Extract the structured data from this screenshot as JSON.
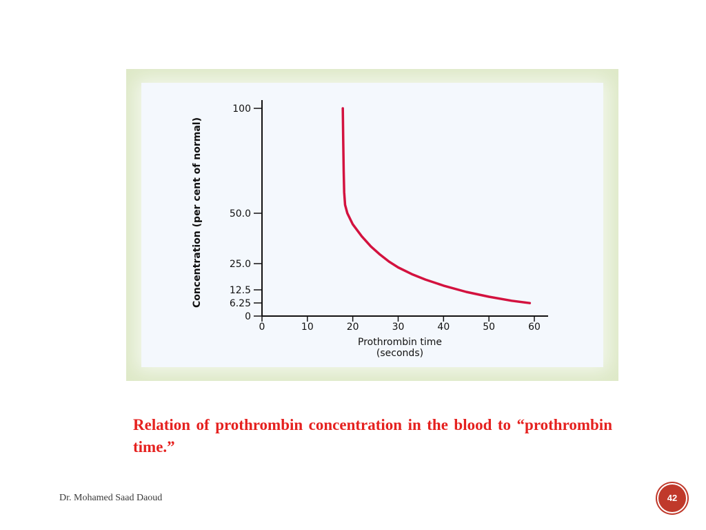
{
  "colors": {
    "curve": "#d3123f",
    "caption": "#e5211f",
    "badge": "#c0392b"
  },
  "chart_data": {
    "type": "line",
    "ylabel": "Concentration (per cent of normal)",
    "xlabel_line1": "Prothrombin time",
    "xlabel_line2": "(seconds)",
    "x_ticks": [
      0,
      10,
      20,
      30,
      40,
      50,
      60
    ],
    "y_ticks": [
      "100",
      "50.0",
      "25.0",
      "12.5",
      "6.25",
      "0"
    ],
    "xlim": [
      0,
      63
    ],
    "grid": false,
    "series": [
      {
        "x": [
          17.8,
          17.9,
          18.0,
          18.1,
          18.3,
          18.8,
          20,
          22,
          24,
          26,
          28,
          30,
          33,
          36,
          40,
          45,
          50,
          55,
          59
        ],
        "y": [
          100,
          85,
          70,
          60,
          54,
          50,
          44.5,
          38.5,
          33.5,
          29.5,
          26,
          23.2,
          20,
          17.4,
          14.5,
          11.5,
          9.2,
          7.3,
          6.2
        ]
      }
    ]
  },
  "caption": "Relation of prothrombin concentration in the blood to “prothrombin time.”",
  "footer": {
    "author": "Dr. Mohamed Saad Daoud",
    "page_number": "42"
  }
}
